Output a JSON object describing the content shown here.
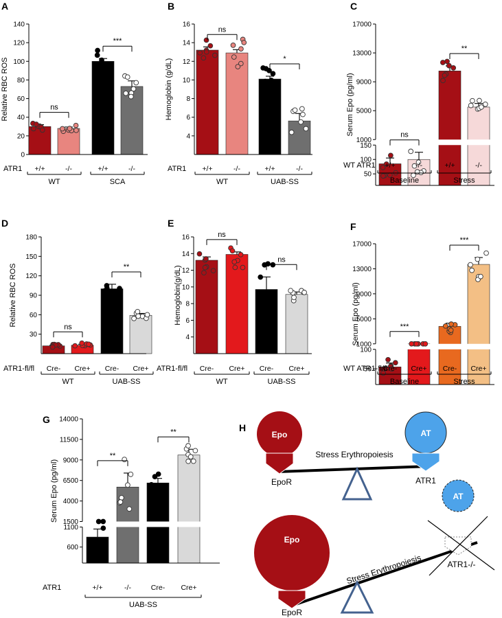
{
  "figure": {
    "panel_labels": [
      "A",
      "B",
      "C",
      "D",
      "E",
      "F",
      "G",
      "H"
    ],
    "colors": {
      "dark_red": "#a50f15",
      "pink": "#e8857f",
      "black": "#000000",
      "gray": "#6f6f6f",
      "red": "#e3191c",
      "light_gray": "#d9d9d9",
      "orange": "#e8691f",
      "light_orange": "#f3bf85",
      "light_pink": "#f6d9d9",
      "epo_red": "#a50f15",
      "at_blue": "#4da3ea",
      "fulcrum_blue": "#44628f"
    }
  },
  "chart_data": [
    {
      "panel": "A",
      "type": "bar",
      "ylabel": "Relative RBC ROS",
      "yticks": [
        0,
        20,
        40,
        60,
        80,
        100,
        120,
        140
      ],
      "ylim": [
        0,
        140
      ],
      "row_label": "ATR1",
      "categories": [
        "+/+",
        "-/-",
        "+/+",
        "-/-"
      ],
      "groups": [
        {
          "label": "WT",
          "span": [
            0,
            1
          ]
        },
        {
          "label": "SCA",
          "span": [
            2,
            3
          ]
        }
      ],
      "values": [
        30,
        28,
        100,
        73
      ],
      "errors": [
        2,
        1.5,
        3,
        6
      ],
      "colors": [
        "#a50f15",
        "#e8857f",
        "#000000",
        "#6f6f6f"
      ],
      "significance": [
        {
          "a": 0,
          "b": 1,
          "label": "ns"
        },
        {
          "a": 2,
          "b": 3,
          "label": "***"
        }
      ]
    },
    {
      "panel": "B",
      "type": "bar",
      "ylabel": "Hemoglobin (g/dL)",
      "yticks": [
        4,
        6,
        8,
        10,
        12,
        14,
        16
      ],
      "ylim": [
        2,
        16
      ],
      "row_label": "ATR1",
      "categories": [
        "+/+",
        "-/-",
        "+/+",
        "-/-"
      ],
      "groups": [
        {
          "label": "WT",
          "span": [
            0,
            1
          ]
        },
        {
          "label": "UAB-SS",
          "span": [
            2,
            3
          ]
        }
      ],
      "values": [
        13.2,
        12.9,
        10.1,
        5.6
      ],
      "errors": [
        0.35,
        0.35,
        0.3,
        0.8
      ],
      "colors": [
        "#a50f15",
        "#e8857f",
        "#000000",
        "#6f6f6f"
      ],
      "significance": [
        {
          "a": 0,
          "b": 1,
          "label": "ns"
        },
        {
          "a": 2,
          "b": 3,
          "label": "*"
        }
      ]
    },
    {
      "panel": "C",
      "type": "bar",
      "ylabel": "Serum Epo (pg/ml)",
      "yticks_upper": [
        1000,
        5000,
        9000,
        13000,
        17000
      ],
      "yticks_lower": [
        50,
        100,
        150
      ],
      "row_label": "WT ATR1",
      "categories": [
        "+/+",
        "-/-",
        "+/+",
        "-/-"
      ],
      "groups": [
        {
          "label": "Baseline",
          "span": [
            0,
            1
          ]
        },
        {
          "label": "Stress",
          "span": [
            2,
            3
          ]
        }
      ],
      "values": [
        85,
        100,
        10500,
        5500
      ],
      "errors": [
        20,
        25,
        700,
        500
      ],
      "colors": [
        "#a50f15",
        "#f6d9d9",
        "#a50f15",
        "#f6d9d9"
      ],
      "significance": [
        {
          "a": 0,
          "b": 1,
          "label": "ns"
        },
        {
          "a": 2,
          "b": 3,
          "label": "**"
        }
      ]
    },
    {
      "panel": "D",
      "type": "bar",
      "ylabel": "Relative RBC ROS",
      "yticks": [
        30,
        60,
        90,
        120,
        150,
        180
      ],
      "ylim": [
        0,
        180
      ],
      "row_label": "ATR1-fl/fl",
      "categories": [
        "Cre-",
        "Cre+",
        "Cre-",
        "Cre+"
      ],
      "groups": [
        {
          "label": "WT",
          "span": [
            0,
            1
          ]
        },
        {
          "label": "UAB-SS",
          "span": [
            2,
            3
          ]
        }
      ],
      "values": [
        12,
        13,
        100,
        59
      ],
      "errors": [
        1,
        1.5,
        7,
        3
      ],
      "colors": [
        "#a50f15",
        "#e3191c",
        "#000000",
        "#d9d9d9"
      ],
      "significance": [
        {
          "a": 0,
          "b": 1,
          "label": "ns"
        },
        {
          "a": 2,
          "b": 3,
          "label": "**"
        }
      ]
    },
    {
      "panel": "E",
      "type": "bar",
      "ylabel": "Hemoglobin(g/dL)",
      "yticks": [
        4,
        6,
        8,
        10,
        12,
        14,
        16
      ],
      "ylim": [
        2,
        16
      ],
      "row_label": "ATR1-fl/fl",
      "categories": [
        "Cre-",
        "Cre+",
        "Cre-",
        "Cre+"
      ],
      "groups": [
        {
          "label": "WT",
          "span": [
            0,
            1
          ]
        },
        {
          "label": "UAB-SS",
          "span": [
            2,
            3
          ]
        }
      ],
      "values": [
        13.2,
        13.9,
        9.7,
        9.1
      ],
      "errors": [
        0.4,
        0.3,
        1.5,
        0.3
      ],
      "colors": [
        "#a50f15",
        "#e3191c",
        "#000000",
        "#d9d9d9"
      ],
      "significance": [
        {
          "a": 0,
          "b": 1,
          "label": "ns"
        },
        {
          "a": 2,
          "b": 3,
          "label": "ns"
        }
      ]
    },
    {
      "panel": "F",
      "type": "bar",
      "ylabel": "Serum Epo (pg/ml)",
      "yticks_upper": [
        1000,
        5000,
        9000,
        13000,
        17000
      ],
      "yticks_lower": [
        50,
        100
      ],
      "row_label": "WT ATR1-fl/fl",
      "categories": [
        "Cre-",
        "Cre+",
        "Cre-",
        "Cre+"
      ],
      "groups": [
        {
          "label": "Baseline",
          "span": [
            0,
            1
          ]
        },
        {
          "label": "Stress",
          "span": [
            2,
            3
          ]
        }
      ],
      "values": [
        55,
        800,
        3800,
        13700
      ],
      "errors": [
        10,
        50,
        500,
        1100
      ],
      "colors": [
        "#a50f15",
        "#e3191c",
        "#e8691f",
        "#f3bf85"
      ],
      "significance": [
        {
          "a": 0,
          "b": 1,
          "label": "***"
        },
        {
          "a": 2,
          "b": 3,
          "label": "***"
        }
      ]
    },
    {
      "panel": "G",
      "type": "bar",
      "ylabel": "Serum Epo (pg/ml)",
      "yticks_upper": [
        1500,
        4000,
        6500,
        9000,
        11500,
        14000
      ],
      "yticks_lower": [
        600,
        1100
      ],
      "row_label": "ATR1",
      "categories": [
        "+/+",
        "-/-",
        "Cre-",
        "Cre+"
      ],
      "groups": [
        {
          "label": "UAB-SS",
          "span": [
            0,
            3
          ]
        }
      ],
      "values": [
        850,
        5700,
        6200,
        9600
      ],
      "errors": [
        200,
        1700,
        550,
        700
      ],
      "colors": [
        "#000000",
        "#6f6f6f",
        "#000000",
        "#d9d9d9"
      ],
      "significance": [
        {
          "a": 0,
          "b": 1,
          "label": "**"
        },
        {
          "a": 2,
          "b": 3,
          "label": "**"
        }
      ]
    }
  ],
  "diagram_h": {
    "top": {
      "left_circle": "Epo",
      "right_circle": "AT",
      "beam": "Stress Erythropoiesis",
      "left_receptor": "EpoR",
      "right_receptor": "ATR1"
    },
    "bottom": {
      "left_circle": "Epo",
      "right_circle": "AT",
      "beam": "Stress Erythropoiesis",
      "left_receptor": "EpoR",
      "right_receptor": "ATR1-/-"
    }
  }
}
